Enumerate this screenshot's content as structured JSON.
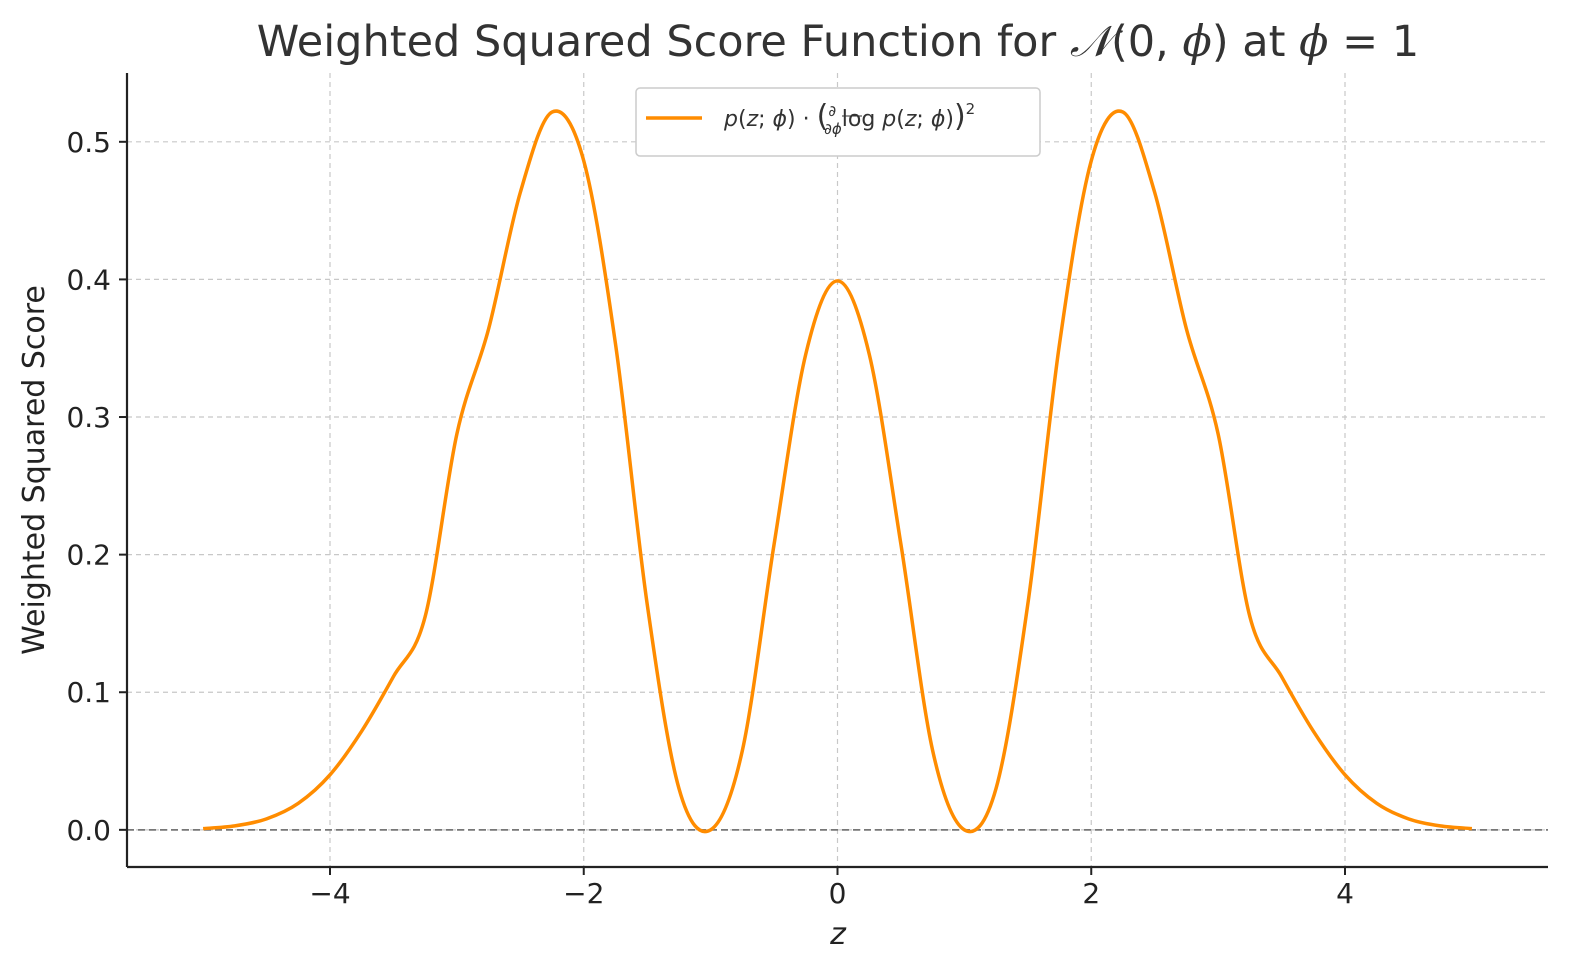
{
  "chart_data": {
    "type": "line",
    "title": "Weighted Squared Score Function for 𝒩(0, ϕ) at ϕ = 1",
    "xlabel": "z",
    "ylabel": "Weighted Squared Score",
    "xlim": [
      -5.6,
      5.6
    ],
    "ylim": [
      -0.027,
      0.55
    ],
    "xticks": [
      -4,
      -2,
      0,
      2,
      4
    ],
    "xtick_labels": [
      "−4",
      "−2",
      "0",
      "2",
      "4"
    ],
    "yticks": [
      0.0,
      0.1,
      0.2,
      0.3,
      0.4,
      0.5
    ],
    "ytick_labels": [
      "0.0",
      "0.1",
      "0.2",
      "0.3",
      "0.4",
      "0.5"
    ],
    "grid": true,
    "legend_position": "top-center",
    "reference_line": {
      "y": 0.0,
      "style": "dashed",
      "color": "#777777"
    },
    "series": [
      {
        "name": "p(z; ϕ) · ( ∂/∂ϕ log p(z; ϕ) )²",
        "color": "#ff8c00",
        "x": [
          -5.0,
          -4.75,
          -4.5,
          -4.25,
          -4.0,
          -3.75,
          -3.5,
          -3.25,
          -3.0,
          -2.75,
          -2.5,
          -2.25,
          -2.0,
          -1.75,
          -1.5,
          -1.25,
          -1.0,
          -0.75,
          -0.5,
          -0.25,
          0.0,
          0.25,
          0.5,
          0.75,
          1.0,
          1.25,
          1.5,
          1.75,
          2.0,
          2.25,
          2.5,
          2.75,
          3.0,
          3.25,
          3.5,
          3.75,
          4.0,
          4.25,
          4.5,
          4.75,
          5.0
        ],
        "y": [
          0.0009,
          0.0029,
          0.008,
          0.0193,
          0.04,
          0.0718,
          0.1114,
          0.155,
          0.2877,
          0.364,
          0.4632,
          0.5216,
          0.4862,
          0.3532,
          0.164,
          0.0302,
          0.0,
          0.0576,
          0.2074,
          0.3457,
          0.3989,
          0.3457,
          0.2074,
          0.0576,
          0.0,
          0.0302,
          0.164,
          0.3532,
          0.4862,
          0.5216,
          0.4632,
          0.364,
          0.2877,
          0.155,
          0.1114,
          0.0718,
          0.04,
          0.0193,
          0.008,
          0.0029,
          0.0009
        ]
      }
    ]
  }
}
